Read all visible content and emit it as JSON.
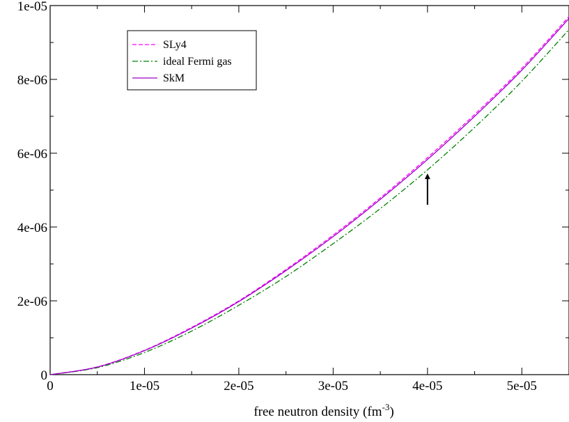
{
  "chart_data": {
    "type": "line",
    "title": "",
    "xlabel": "free neutron density (fm",
    "xlabel_superscript": "-3",
    "xlabel_suffix": ")",
    "ylabel": "",
    "xlim": [
      0,
      5.5e-05
    ],
    "ylim": [
      0,
      1e-05
    ],
    "x_ticks": [
      0,
      1e-05,
      2e-05,
      3e-05,
      4e-05,
      5e-05
    ],
    "x_tick_labels": [
      "0",
      "1e-05",
      "2e-05",
      "3e-05",
      "4e-05",
      "5e-05"
    ],
    "y_ticks": [
      0,
      2e-06,
      4e-06,
      6e-06,
      8e-06,
      1e-05
    ],
    "y_tick_labels": [
      "0",
      "2e-06",
      "4e-06",
      "6e-06",
      "8e-06",
      "1e-05"
    ],
    "grid": false,
    "legend_position": "top-left",
    "series": [
      {
        "name": "SLy4",
        "color": "#ff00ff",
        "style": "dashed",
        "x": [
          0,
          5e-06,
          1e-05,
          1.5e-05,
          2e-05,
          2.5e-05,
          3e-05,
          3.5e-05,
          4e-05,
          4.5e-05,
          5e-05,
          5.5e-05
        ],
        "y": [
          0,
          2.1e-07,
          6.6e-07,
          1.28e-06,
          2e-06,
          2.85e-06,
          3.78e-06,
          4.79e-06,
          5.88e-06,
          7.05e-06,
          8.3e-06,
          9.7e-06
        ]
      },
      {
        "name": "ideal Fermi gas",
        "color": "#008000",
        "style": "dashdot",
        "x": [
          0,
          5e-06,
          1e-05,
          1.5e-05,
          2e-05,
          2.5e-05,
          3e-05,
          3.5e-05,
          4e-05,
          4.5e-05,
          5e-05,
          5.5e-05
        ],
        "y": [
          0,
          1.9e-07,
          6e-07,
          1.18e-06,
          1.88e-06,
          2.66e-06,
          3.55e-06,
          4.5e-06,
          5.55e-06,
          6.7e-06,
          7.95e-06,
          9.35e-06
        ]
      },
      {
        "name": "SkM",
        "color": "#a000c8",
        "style": "solid",
        "x": [
          0,
          5e-06,
          1e-05,
          1.5e-05,
          2e-05,
          2.5e-05,
          3e-05,
          3.5e-05,
          4e-05,
          4.5e-05,
          5e-05,
          5.5e-05
        ],
        "y": [
          0,
          2.05e-07,
          6.5e-07,
          1.26e-06,
          1.98e-06,
          2.82e-06,
          3.74e-06,
          4.75e-06,
          5.83e-06,
          7e-06,
          8.25e-06,
          9.65e-06
        ]
      }
    ],
    "annotations": [
      {
        "type": "arrow",
        "direction": "up",
        "x": 4e-05,
        "y_tail": 4.6e-06,
        "y_head": 5.45e-06
      }
    ]
  }
}
